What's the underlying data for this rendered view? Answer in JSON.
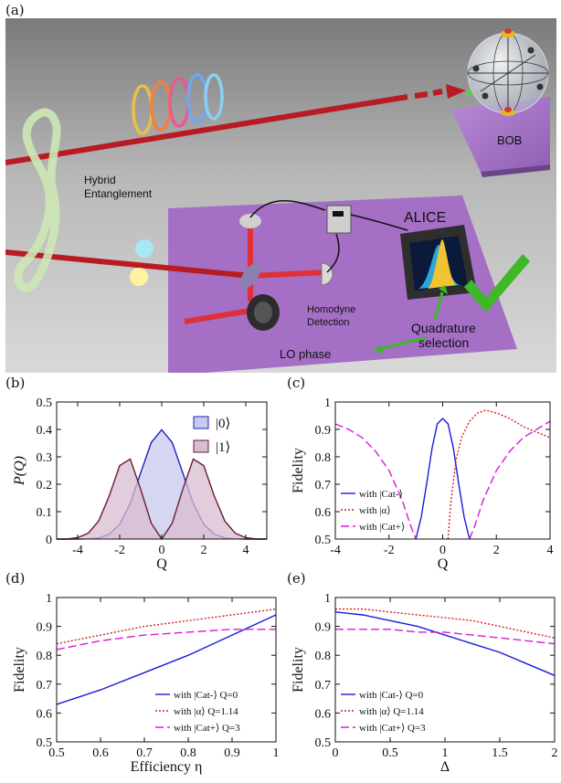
{
  "panels": {
    "a": "(a)",
    "b": "(b)",
    "c": "(c)",
    "d": "(d)",
    "e": "(e)"
  },
  "scene": {
    "hybrid_line1": "Hybrid",
    "hybrid_line2": "Entanglement",
    "bob": "BOB",
    "alice": "ALICE",
    "homodyne_line1": "Homodyne",
    "homodyne_line2": "Detection",
    "quad_line1": "Quadrature",
    "quad_line2": "selection",
    "lo_phase": "LO phase",
    "colors": {
      "beam": "#c0202a",
      "platform": "#a56fc6",
      "entangle": "#cde8b4",
      "check": "#3fb828"
    }
  },
  "chart_data": [
    {
      "id": "b",
      "type": "area",
      "xlabel": "Q",
      "ylabel": "P(Q)",
      "xlim": [
        -5,
        5
      ],
      "ylim": [
        0,
        0.5
      ],
      "xticks": [
        -4,
        -2,
        0,
        2,
        4
      ],
      "yticks": [
        0,
        0.1,
        0.2,
        0.3,
        0.4,
        0.5
      ],
      "legend": "top-right",
      "series": [
        {
          "name": "|0⟩",
          "color": "#2222bb",
          "fill": "#c7c9ee",
          "x": [
            -5,
            -4.5,
            -4,
            -3.5,
            -3,
            -2.5,
            -2,
            -1.5,
            -1,
            -0.5,
            0,
            0.5,
            1,
            1.5,
            2,
            2.5,
            3,
            3.5,
            4,
            4.5,
            5
          ],
          "y": [
            0,
            0,
            0,
            0.001,
            0.004,
            0.018,
            0.054,
            0.13,
            0.242,
            0.352,
            0.399,
            0.352,
            0.242,
            0.13,
            0.054,
            0.018,
            0.004,
            0.001,
            0,
            0,
            0
          ]
        },
        {
          "name": "|1⟩",
          "color": "#6a1a3a",
          "fill": "#d8bcd0",
          "x": [
            -5,
            -4.5,
            -4,
            -3.5,
            -3,
            -2.5,
            -2,
            -1.5,
            -1,
            -0.5,
            0,
            0.5,
            1,
            1.5,
            2,
            2.5,
            3,
            3.5,
            4,
            4.5,
            5
          ],
          "y": [
            0,
            0,
            0.005,
            0.021,
            0.066,
            0.157,
            0.268,
            0.292,
            0.181,
            0.058,
            0,
            0.058,
            0.181,
            0.292,
            0.268,
            0.157,
            0.066,
            0.021,
            0.005,
            0,
            0
          ]
        }
      ]
    },
    {
      "id": "c",
      "type": "line",
      "xlabel": "Q",
      "ylabel": "Fidelity",
      "xlim": [
        -4,
        4
      ],
      "ylim": [
        0.5,
        1
      ],
      "xticks": [
        -4,
        -2,
        0,
        2,
        4
      ],
      "yticks": [
        0.5,
        0.6,
        0.7,
        0.8,
        0.9,
        1
      ],
      "legend": "bottom-left",
      "series": [
        {
          "name": "with |Cat-⟩",
          "color": "#1a1adb",
          "dash": "",
          "x": [
            -1.0,
            -0.8,
            -0.6,
            -0.4,
            -0.2,
            0,
            0.2,
            0.4,
            0.6,
            0.8,
            1.0
          ],
          "y": [
            0.5,
            0.58,
            0.7,
            0.83,
            0.92,
            0.94,
            0.92,
            0.83,
            0.7,
            0.58,
            0.5
          ]
        },
        {
          "name": "with |α⟩",
          "color": "#d42020",
          "dash": "2,2",
          "x": [
            0.2,
            0.3,
            0.5,
            0.7,
            1.0,
            1.3,
            1.6,
            2.0,
            2.5,
            3.0,
            3.5,
            4.0
          ],
          "y": [
            0.5,
            0.63,
            0.79,
            0.87,
            0.93,
            0.96,
            0.97,
            0.96,
            0.94,
            0.91,
            0.89,
            0.87
          ]
        },
        {
          "name": "with |Cat+⟩",
          "color": "#d81ad8",
          "dash": "9,4",
          "x": [
            -4,
            -3.5,
            -3,
            -2.5,
            -2,
            -1.5,
            -1.2,
            -1.0
          ],
          "y": [
            0.92,
            0.9,
            0.87,
            0.82,
            0.75,
            0.64,
            0.55,
            0.5
          ]
        },
        {
          "name": "",
          "color": "#d81ad8",
          "dash": "9,4",
          "x": [
            1.0,
            1.2,
            1.5,
            2,
            2.5,
            3,
            3.5,
            4
          ],
          "y": [
            0.5,
            0.55,
            0.64,
            0.75,
            0.82,
            0.87,
            0.9,
            0.93
          ]
        }
      ]
    },
    {
      "id": "d",
      "type": "line",
      "xlabel": "Efficiency η",
      "ylabel": "Fidelity",
      "xlim": [
        0.5,
        1
      ],
      "ylim": [
        0.5,
        1
      ],
      "xticks": [
        0.5,
        0.6,
        0.7,
        0.8,
        0.9,
        1
      ],
      "yticks": [
        0.5,
        0.6,
        0.7,
        0.8,
        0.9,
        1
      ],
      "legend": "bottom-right",
      "series": [
        {
          "name": "with |Cat-⟩ Q=0",
          "color": "#1a1adb",
          "dash": "",
          "x": [
            0.5,
            0.6,
            0.7,
            0.8,
            0.9,
            1.0
          ],
          "y": [
            0.63,
            0.68,
            0.74,
            0.8,
            0.87,
            0.94
          ]
        },
        {
          "name": "with |α⟩ Q=1.14",
          "color": "#d42020",
          "dash": "2,2",
          "x": [
            0.5,
            0.6,
            0.7,
            0.8,
            0.9,
            1.0
          ],
          "y": [
            0.84,
            0.87,
            0.9,
            0.92,
            0.94,
            0.96
          ]
        },
        {
          "name": "with |Cat+⟩ Q=3",
          "color": "#d81ad8",
          "dash": "9,4",
          "x": [
            0.5,
            0.6,
            0.7,
            0.8,
            0.9,
            1.0
          ],
          "y": [
            0.82,
            0.85,
            0.87,
            0.88,
            0.89,
            0.89
          ]
        }
      ]
    },
    {
      "id": "e",
      "type": "line",
      "xlabel": "Δ",
      "ylabel": "Fidelity",
      "xlim": [
        0,
        2
      ],
      "ylim": [
        0.5,
        1
      ],
      "xticks": [
        0,
        0.5,
        1,
        1.5,
        2
      ],
      "yticks": [
        0.5,
        0.6,
        0.7,
        0.8,
        0.9,
        1
      ],
      "legend": "bottom-left",
      "series": [
        {
          "name": "with |Cat-⟩ Q=0",
          "color": "#1a1adb",
          "dash": "",
          "x": [
            0,
            0.25,
            0.5,
            0.75,
            1.0,
            1.25,
            1.5,
            1.75,
            2.0
          ],
          "y": [
            0.95,
            0.94,
            0.92,
            0.9,
            0.87,
            0.84,
            0.81,
            0.77,
            0.73
          ]
        },
        {
          "name": "with |α⟩ Q=1.14",
          "color": "#d42020",
          "dash": "2,2",
          "x": [
            0,
            0.25,
            0.5,
            0.75,
            1.0,
            1.25,
            1.5,
            1.75,
            2.0
          ],
          "y": [
            0.96,
            0.96,
            0.95,
            0.94,
            0.93,
            0.92,
            0.9,
            0.88,
            0.86
          ]
        },
        {
          "name": "with |Cat+⟩ Q=3",
          "color": "#d81ad8",
          "dash": "9,4",
          "x": [
            0,
            0.25,
            0.5,
            0.75,
            1.0,
            1.25,
            1.5,
            1.75,
            2.0
          ],
          "y": [
            0.89,
            0.89,
            0.89,
            0.88,
            0.88,
            0.87,
            0.86,
            0.85,
            0.84
          ]
        }
      ]
    }
  ]
}
